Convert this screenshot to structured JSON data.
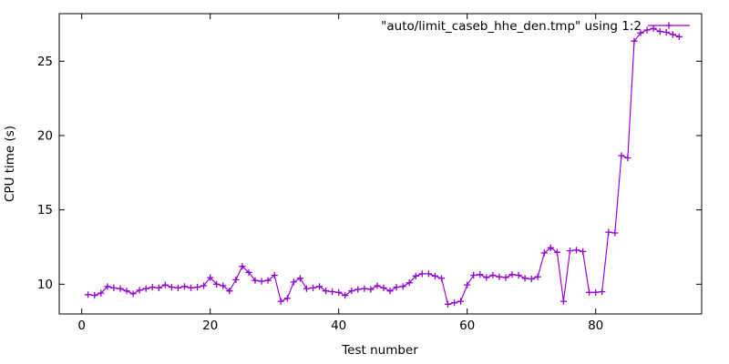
{
  "page": {
    "background": "#ffffff",
    "border_color": "#000000",
    "text_color": "#000000"
  },
  "chart_data": {
    "type": "line",
    "title": "",
    "legend_label": "\"auto/limit_caseb_hhe_den.tmp\" using 1:2",
    "legend_position": "top-right-inside",
    "xlabel": "Test number",
    "ylabel": "CPU time (s)",
    "grid": false,
    "x_ticks": [
      0,
      20,
      40,
      60,
      80
    ],
    "y_ticks": [
      10,
      15,
      20,
      25
    ],
    "xlim": [
      -3.5,
      96.5
    ],
    "ylim": [
      8,
      28.2
    ],
    "line_color": "#9400d3",
    "marker": "plus",
    "series": [
      {
        "name": "\"auto/limit_caseb_hhe_den.tmp\" using 1:2",
        "x": [
          1,
          2,
          3,
          4,
          5,
          6,
          7,
          8,
          9,
          10,
          11,
          12,
          13,
          14,
          15,
          16,
          17,
          18,
          19,
          20,
          21,
          22,
          23,
          24,
          25,
          26,
          27,
          28,
          29,
          30,
          31,
          32,
          33,
          34,
          35,
          36,
          37,
          38,
          39,
          40,
          41,
          42,
          43,
          44,
          45,
          46,
          47,
          48,
          49,
          50,
          51,
          52,
          53,
          54,
          55,
          56,
          57,
          58,
          59,
          60,
          61,
          62,
          63,
          64,
          65,
          66,
          67,
          68,
          69,
          70,
          71,
          72,
          73,
          74,
          75,
          76,
          77,
          78,
          79,
          80,
          81,
          82,
          83,
          84,
          85,
          86,
          87,
          88,
          89,
          90,
          91,
          92,
          93
        ],
        "y": [
          9.3,
          9.25,
          9.4,
          9.85,
          9.75,
          9.7,
          9.55,
          9.35,
          9.6,
          9.7,
          9.8,
          9.75,
          9.95,
          9.8,
          9.75,
          9.85,
          9.75,
          9.8,
          9.9,
          10.45,
          10.0,
          9.9,
          9.55,
          10.3,
          11.2,
          10.8,
          10.25,
          10.2,
          10.25,
          10.6,
          8.85,
          9.05,
          10.15,
          10.4,
          9.7,
          9.75,
          9.85,
          9.55,
          9.5,
          9.45,
          9.25,
          9.55,
          9.65,
          9.7,
          9.65,
          9.9,
          9.75,
          9.55,
          9.8,
          9.85,
          10.1,
          10.55,
          10.7,
          10.7,
          10.55,
          10.4,
          8.65,
          8.75,
          8.85,
          9.95,
          10.6,
          10.65,
          10.45,
          10.6,
          10.5,
          10.45,
          10.65,
          10.6,
          10.4,
          10.35,
          10.5,
          12.1,
          12.45,
          12.15,
          8.85,
          12.25,
          12.3,
          12.2,
          9.45,
          9.45,
          9.5,
          13.5,
          13.45,
          18.65,
          18.5,
          26.35,
          26.9,
          27.1,
          27.2,
          27.0,
          26.95,
          26.8,
          26.65
        ]
      }
    ]
  }
}
